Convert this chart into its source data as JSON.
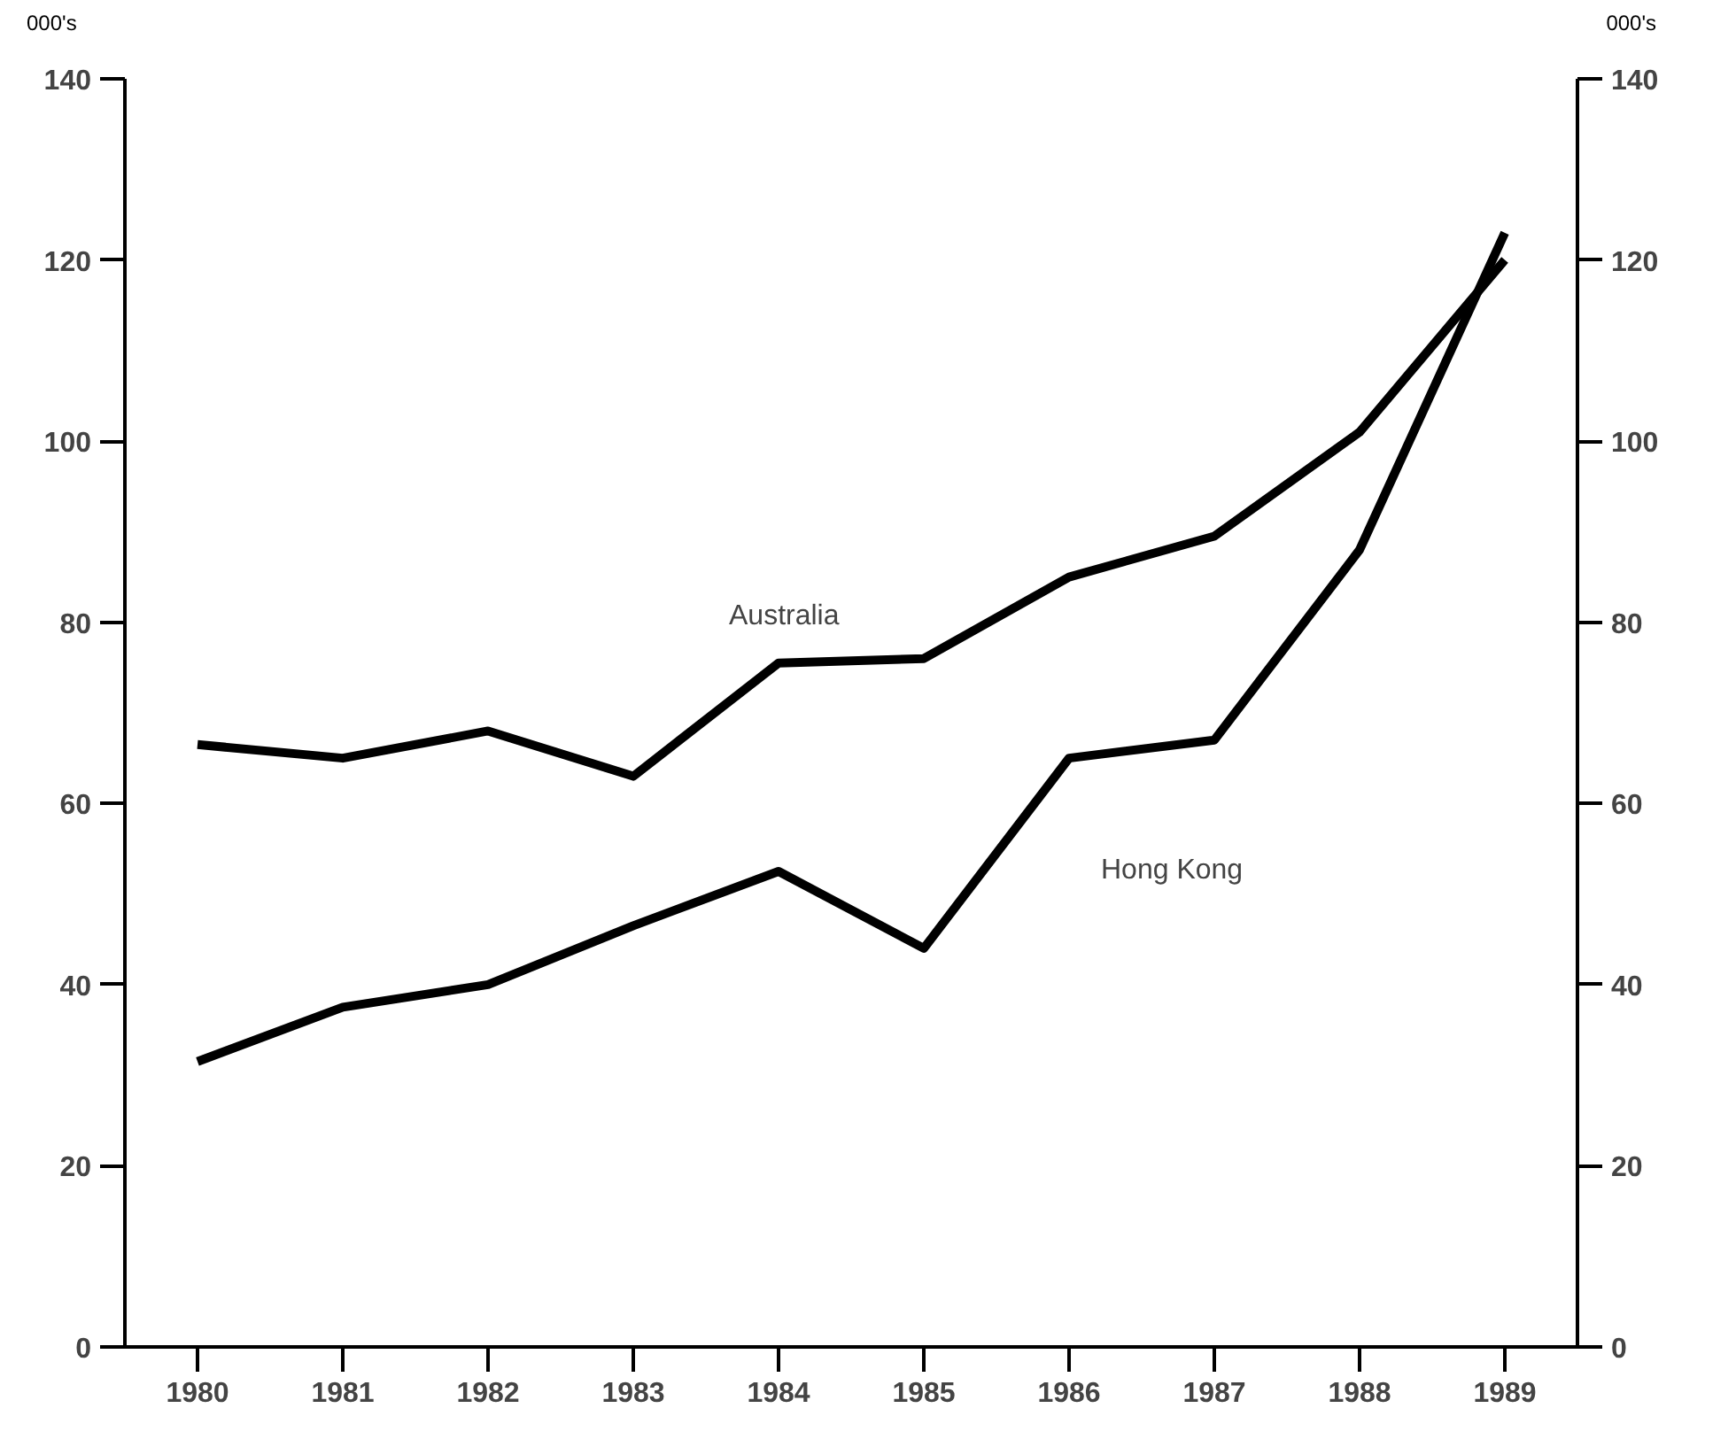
{
  "chart_data": {
    "type": "line",
    "x": [
      1980,
      1981,
      1982,
      1983,
      1984,
      1985,
      1986,
      1987,
      1988,
      1989
    ],
    "series": [
      {
        "name": "Australia",
        "color": "#000000",
        "values": [
          66.5,
          65,
          68,
          63,
          75.5,
          76,
          85,
          89.5,
          101,
          120
        ]
      },
      {
        "name": "Hong Kong",
        "color": "#000000",
        "values": [
          31.5,
          37.5,
          40,
          46.5,
          52.5,
          44,
          65,
          67,
          88,
          123
        ]
      }
    ],
    "xlim": [
      1979.5,
      1989.5
    ],
    "xticks": [
      1980,
      1981,
      1982,
      1983,
      1984,
      1985,
      1986,
      1987,
      1988,
      1989
    ],
    "ylim": [
      0,
      140
    ],
    "yticks": [
      0,
      20,
      40,
      60,
      80,
      100,
      120,
      140
    ],
    "y2lim": [
      0,
      140
    ],
    "y2ticks": [
      0,
      20,
      40,
      60,
      80,
      100,
      120,
      140
    ],
    "ylabel": "000's",
    "y2label": "000's",
    "grid": false,
    "legend": false,
    "marker": "none",
    "line_style": "solid"
  }
}
